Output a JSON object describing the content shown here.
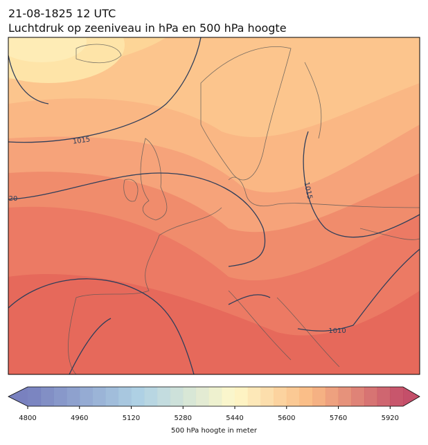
{
  "title": "21-08-1825 12 UTC",
  "subtitle": "Luchtdruk op zeeniveau in hPa en 500 hPa hoogte",
  "isobar_labels": [
    "1015",
    "20",
    "1015",
    "1010"
  ],
  "colorbar": {
    "label": "500 hPa hoogte in meter",
    "lim": [
      4800,
      5960
    ],
    "ticks": [
      4800,
      4960,
      5120,
      5280,
      5440,
      5600,
      5760,
      5920
    ]
  }
}
